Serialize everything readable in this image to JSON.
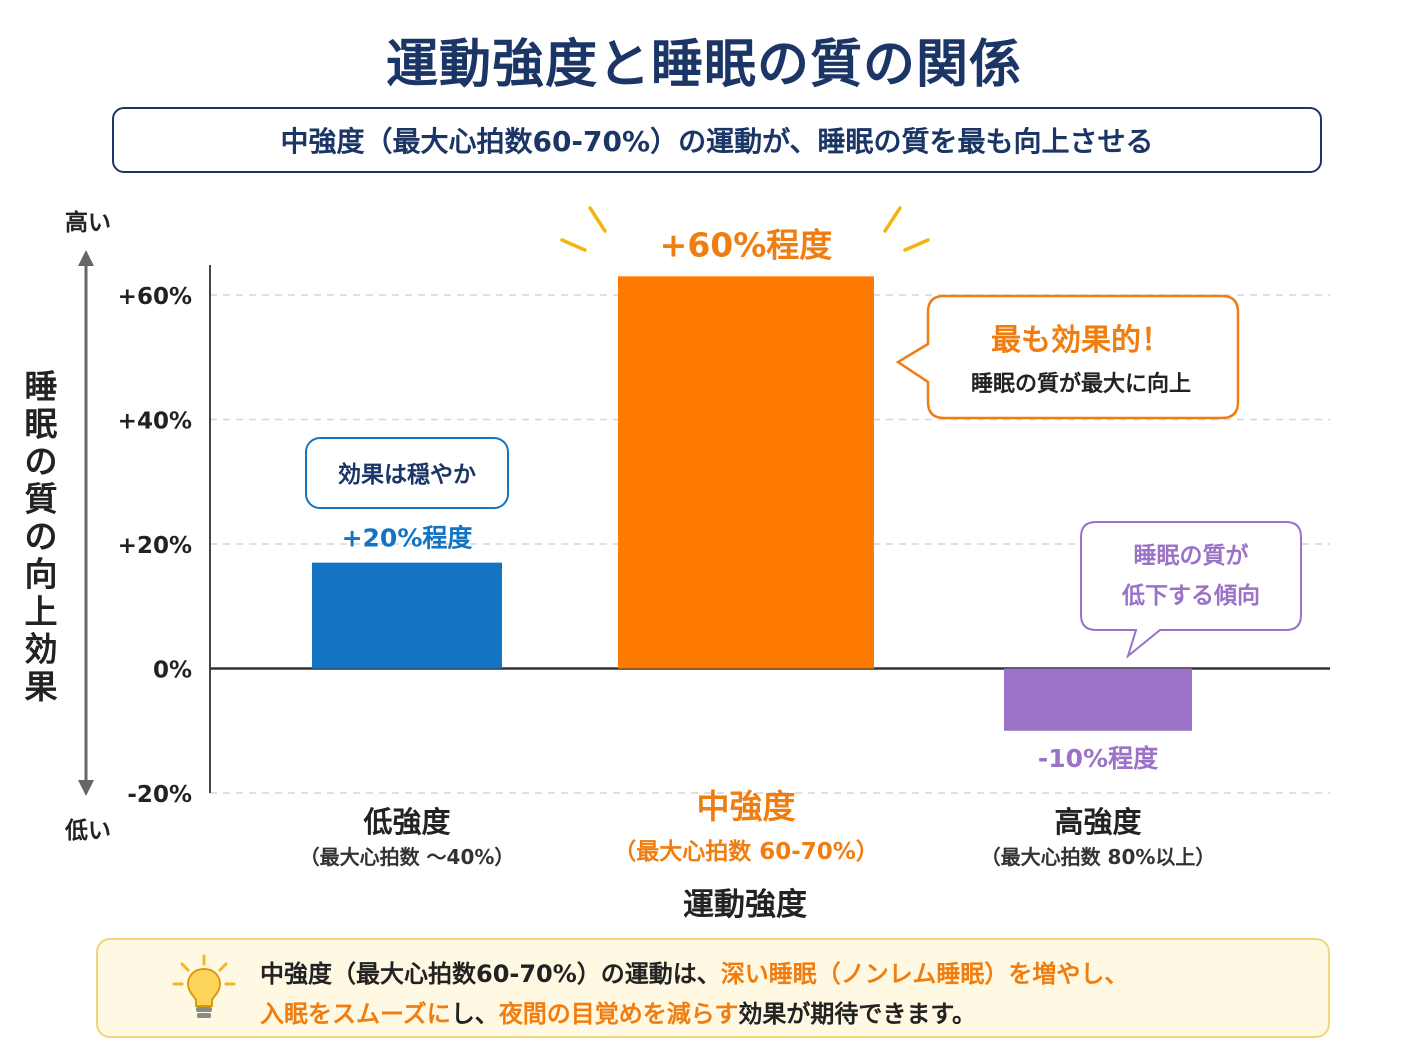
{
  "title": "運動強度と睡眠の質の関係",
  "subtitle": "中強度（最大心拍数60-70%）の運動が、睡眠の質を最も向上させる",
  "chart_data": {
    "type": "bar",
    "categories": [
      "低強度",
      "中強度",
      "高強度"
    ],
    "category_sublabels": [
      "（最大心拍数 〜40%）",
      "（最大心拍数 60-70%）",
      "（最大心拍数 80%以上）"
    ],
    "values": [
      17,
      63,
      -10
    ],
    "value_labels": [
      "+20%程度",
      "+60%程度",
      "-10%程度"
    ],
    "bar_colors": [
      "#1374c4",
      "#ff7a00",
      "#9b72c6"
    ],
    "label_colors": [
      "#1374c4",
      "#f07d10",
      "#9b72c6"
    ],
    "highlight_category": "中強度",
    "ylim": [
      -20,
      60
    ],
    "yticks": [
      -20,
      0,
      20,
      40,
      60
    ],
    "ytick_labels": [
      "-20%",
      "0%",
      "+20%",
      "+40%",
      "+60%"
    ],
    "ylabel": "睡眠の質の向上効果",
    "ylabel_top": "高い",
    "ylabel_bottom": "低い",
    "xlabel": "運動強度",
    "grid": "dashed horizontal",
    "annotations": [
      {
        "target": "低強度",
        "lines": [
          "効果は穏やか"
        ],
        "color": "#1374c4"
      },
      {
        "target": "中強度",
        "lines": [
          "最も効果的！",
          "睡眠の質が最大に向上"
        ],
        "color": "#f07d10"
      },
      {
        "target": "高強度",
        "lines": [
          "睡眠の質が",
          "低下する傾向"
        ],
        "color": "#9b72c6"
      }
    ]
  },
  "tip": {
    "icon": "lightbulb-icon",
    "parts": [
      {
        "text": "中強度（最大心拍数60-70%）の運動は、",
        "highlight": false
      },
      {
        "text": "深い睡眠（ノンレム睡眠）を増やし、",
        "highlight": true
      },
      {
        "text": "入眠をスムーズに",
        "highlight": true
      },
      {
        "text": "し、",
        "highlight": false
      },
      {
        "text": "夜間の目覚めを減らす",
        "highlight": true
      },
      {
        "text": "効果が期待できます。",
        "highlight": false
      }
    ]
  }
}
